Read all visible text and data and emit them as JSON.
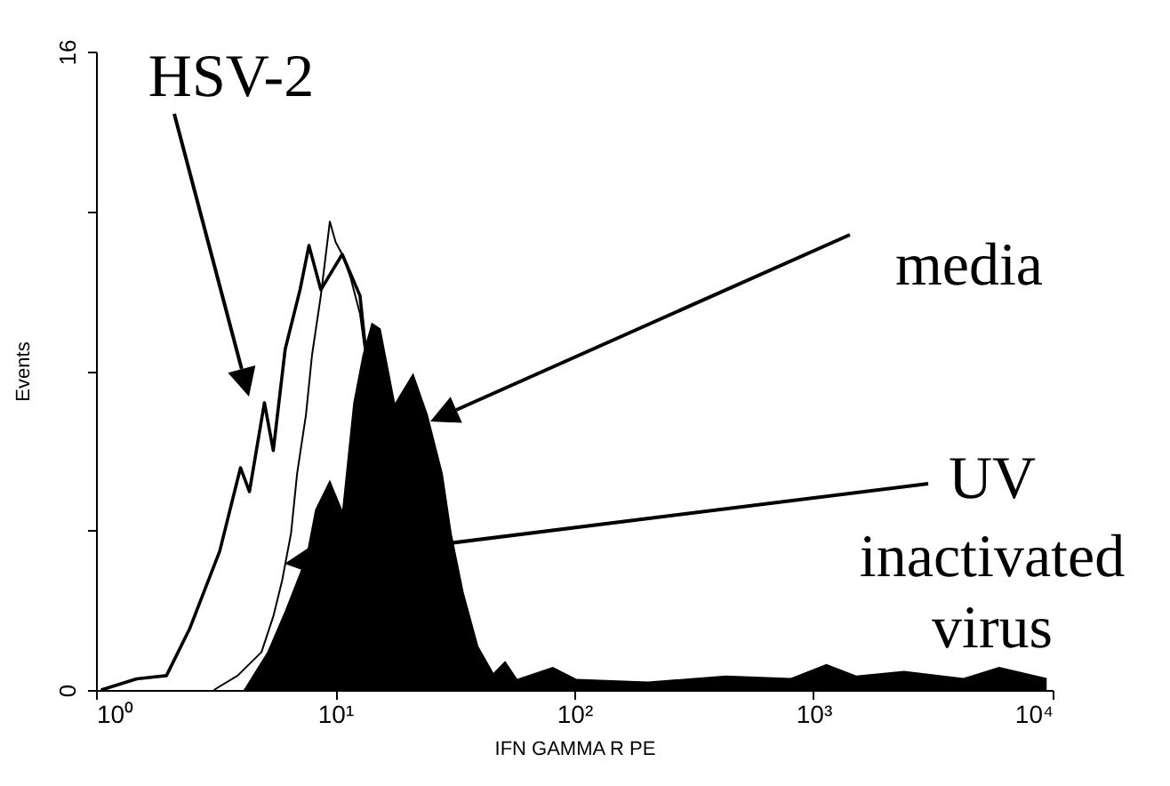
{
  "chart_data": {
    "type": "line",
    "xlabel": "IFN GAMMA R PE",
    "ylabel": "Events",
    "log": "x",
    "xlim": [
      1,
      10000
    ],
    "xticks": [
      {
        "value": 1,
        "label": "10⁰"
      },
      {
        "value": 10,
        "label": "10¹"
      },
      {
        "value": 100,
        "label": "10²"
      },
      {
        "value": 1000,
        "label": "10³"
      },
      {
        "value": 10000,
        "label": "10⁴"
      }
    ],
    "ylim": [
      0,
      16
    ],
    "yticks": [
      0,
      {
        "value": 4,
        "label": null
      },
      {
        "value": 8,
        "label": null
      },
      {
        "value": 12,
        "label": null
      },
      16
    ],
    "series": [
      {
        "name": "HSV-2",
        "color": "#000000",
        "x": [
          1.05,
          1.48,
          1.97,
          2.47,
          3.29,
          4.02,
          4.38,
          5.06,
          5.51,
          6.18,
          7.13,
          7.77,
          8.71,
          10.7,
          12.7,
          13.4
        ],
        "values": [
          0,
          0.28,
          0.36,
          1.55,
          3.48,
          5.57,
          4.97,
          7.2,
          6.0,
          8.54,
          10.03,
          11.14,
          10.03,
          10.92,
          9.88,
          8.54
        ]
      },
      {
        "name": "UV inactivated virus",
        "color": "#000000",
        "x": [
          3.11,
          3.91,
          4.92,
          5.51,
          6.0,
          6.54,
          6.93,
          7.55,
          8.0,
          8.71,
          9.5,
          10.05,
          10.7,
          11.6,
          12.7,
          13.4
        ],
        "values": [
          0,
          0.36,
          0.95,
          1.84,
          2.74,
          3.93,
          5.42,
          6.9,
          8.39,
          9.88,
          11.74,
          11.22,
          10.92,
          10.33,
          9.43,
          8.39
        ]
      },
      {
        "name": "media",
        "type": "area",
        "color": "#000000",
        "x": [
          4.14,
          5.2,
          6.18,
          7.55,
          8.24,
          9.5,
          10.7,
          11.9,
          13.0,
          14.2,
          15.5,
          17.8,
          21.2,
          24.4,
          28.2,
          30.7,
          34.5,
          39.7,
          45.9,
          51.4,
          57.7,
          81.3,
          102,
          203,
          429,
          804,
          1133,
          1511,
          2389,
          4236,
          5970,
          9440
        ],
        "values": [
          0,
          0.95,
          2.0,
          3.33,
          4.52,
          5.27,
          4.52,
          7.2,
          8.39,
          9.21,
          9.06,
          7.2,
          7.95,
          6.9,
          5.42,
          3.93,
          2.44,
          1.1,
          0.43,
          0.73,
          0.28,
          0.58,
          0.28,
          0.21,
          0.36,
          0.3,
          0.65,
          0.36,
          0.48,
          0.3,
          0.58,
          0.3
        ]
      }
    ]
  }
}
